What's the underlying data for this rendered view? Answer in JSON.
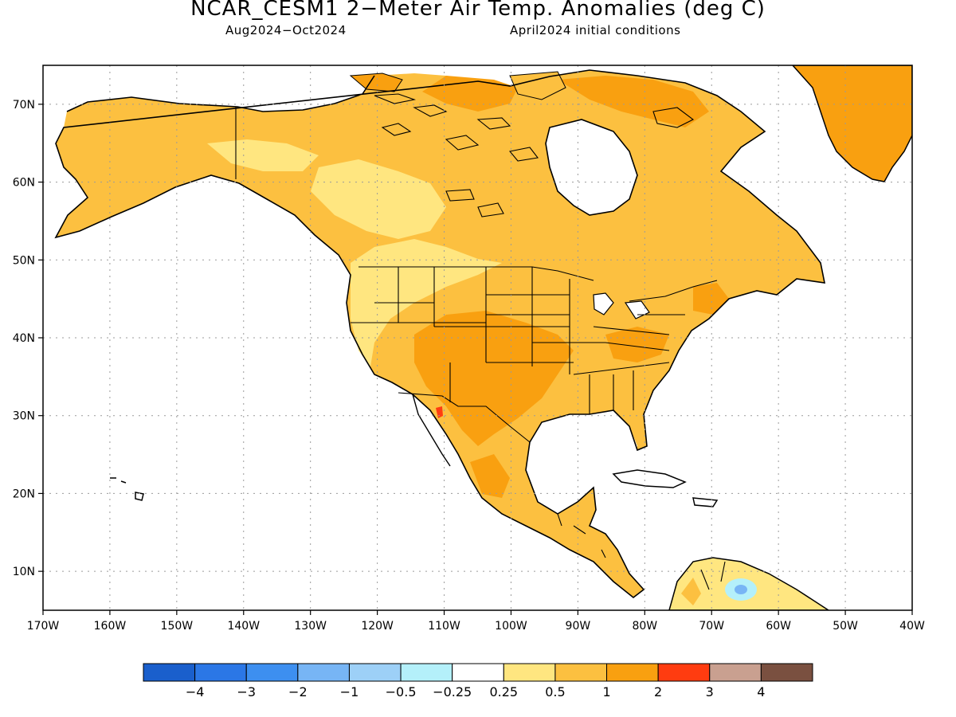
{
  "header": {
    "title": "NCAR_CESM1 2−Meter Air Temp. Anomalies (deg C)",
    "period": "Aug2024−Oct2024",
    "init": "April2024 initial conditions"
  },
  "axes": {
    "lat_labels": [
      "70N",
      "60N",
      "50N",
      "40N",
      "30N",
      "20N",
      "10N"
    ],
    "lon_labels": [
      "170W",
      "160W",
      "150W",
      "140W",
      "130W",
      "120W",
      "110W",
      "100W",
      "90W",
      "80W",
      "70W",
      "60W",
      "50W",
      "40W"
    ]
  },
  "colorbar": {
    "colors": [
      "#1a5fcc",
      "#2b77e6",
      "#3d8ff0",
      "#77b5f5",
      "#9dd0f7",
      "#b4f0fa",
      "#ffffff",
      "#ffe680",
      "#fcc040",
      "#f9a010",
      "#ff3c10",
      "#c9a090",
      "#7a5040"
    ],
    "labels": [
      "−4",
      "−3",
      "−2",
      "−1",
      "−0.5",
      "−0.25",
      "0.25",
      "0.5",
      "1",
      "2",
      "3",
      "4"
    ]
  },
  "map": {
    "extent_lon": [
      -170,
      -40
    ],
    "extent_lat": [
      5,
      75
    ],
    "dominant_anomaly": "0.5 to 2 deg C warm across North America",
    "max_anomaly_region": "Gulf of California 2 to 3 deg C",
    "min_anomaly_region": "northern South America -0.5 to -1 deg C"
  }
}
